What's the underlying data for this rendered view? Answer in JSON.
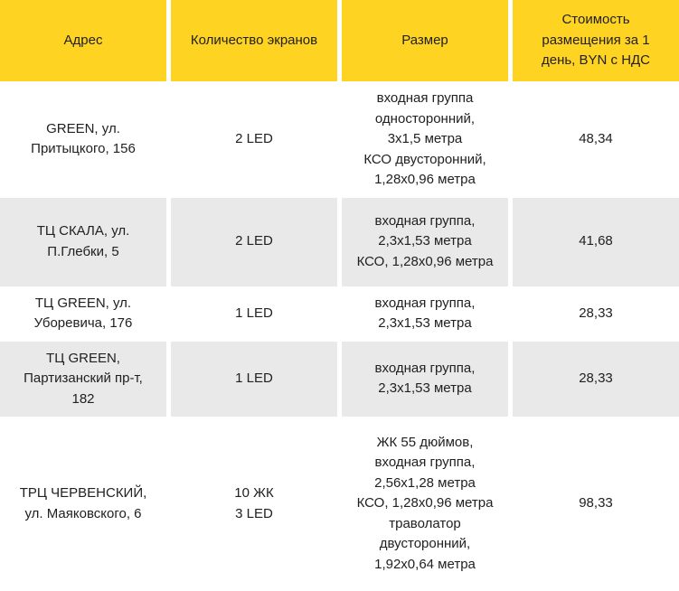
{
  "chart_data": {
    "type": "table",
    "columns": [
      "Адрес",
      "Количество экранов",
      "Размер",
      "Стоимость\nразмещения за 1\nдень, BYN с НДС"
    ],
    "rows": [
      {
        "address": "GREEN, ул.\nПритыцкого, 156",
        "screens": "2 LED",
        "size": "входная группа\nодносторонний,\n3х1,5 метра\nКСО двусторонний,\n1,28х0,96 метра",
        "price": "48,34"
      },
      {
        "address": "ТЦ СКАЛА, ул.\nП.Глебки, 5",
        "screens": "2 LED",
        "size": "входная группа,\n2,3х1,53 метра\nКСО, 1,28х0,96 метра",
        "price": "41,68"
      },
      {
        "address": "ТЦ GREEN, ул.\nУборевича, 176",
        "screens": "1 LED",
        "size": "входная группа,\n2,3х1,53 метра",
        "price": "28,33"
      },
      {
        "address": "ТЦ GREEN,\nПартизанский пр-т,\n182",
        "screens": "1 LED",
        "size": "входная группа,\n2,3х1,53 метра",
        "price": "28,33"
      },
      {
        "address": "ТРЦ ЧЕРВЕНСКИЙ,\nул. Маяковского, 6",
        "screens": "10 ЖК\n3 LED",
        "size": "ЖК 55 дюймов,\nвходная группа,\n2,56х1,28 метра\nКСО, 1,28х0,96 метра\nтраволатор\nдвусторонний,\n1,92х0,64 метра",
        "price": "98,33"
      }
    ],
    "layout": {
      "header_bg": "#ffd322",
      "alt_row_bg": "#e9e9e9",
      "text_color": "#212121",
      "column_count": 4,
      "row_count": 5
    }
  }
}
